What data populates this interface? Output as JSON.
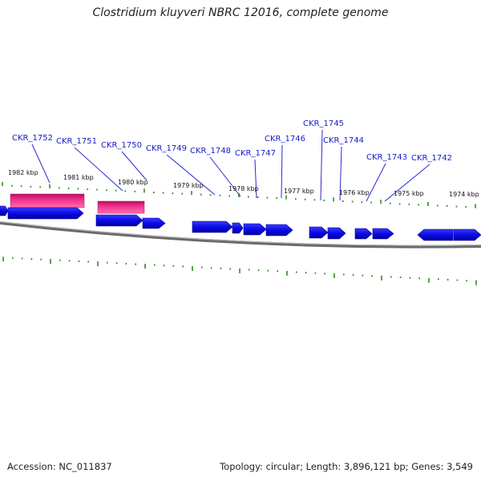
{
  "title": "Clostridium kluyveri NBRC 12016, complete genome",
  "footer": {
    "accession": "Accession: NC_011837",
    "summary": "Topology: circular; Length: 3,896,121 bp; Genes: 3,549"
  },
  "colors": {
    "gene": "#0a0ae6",
    "rna": "#ee2a86",
    "tick": "#2d8a1e",
    "label": "#1a1ac8",
    "backbone": "#8a8a8a"
  },
  "kbp_labels": [
    "1982 kbp",
    "1981 kbp",
    "1980 kbp",
    "1979 kbp",
    "1978 kbp",
    "1977 kbp",
    "1976 kbp",
    "1975 kbp",
    "1974 kbp"
  ],
  "gene_labels": [
    "CKR_1752",
    "CKR_1751",
    "CKR_1750",
    "CKR_1749",
    "CKR_1748",
    "CKR_1747",
    "CKR_1746",
    "CKR_1745",
    "CKR_1744",
    "CKR_1743",
    "CKR_1742"
  ]
}
